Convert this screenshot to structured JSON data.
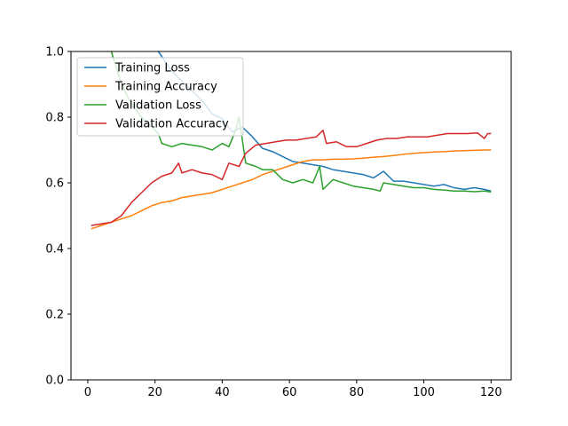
{
  "chart_data": {
    "type": "line",
    "title": "",
    "xlabel": "",
    "ylabel": "",
    "xlim": [
      -5,
      126
    ],
    "ylim": [
      0.0,
      1.0
    ],
    "x_ticks": [
      0,
      20,
      40,
      60,
      80,
      100,
      120
    ],
    "y_ticks": [
      0.0,
      0.2,
      0.4,
      0.6,
      0.8,
      1.0
    ],
    "x_tick_labels": [
      "0",
      "20",
      "40",
      "60",
      "80",
      "100",
      "120"
    ],
    "y_tick_labels": [
      "0.0",
      "0.2",
      "0.4",
      "0.6",
      "0.8",
      "1.0"
    ],
    "grid": false,
    "legend_position": "upper-left",
    "series": [
      {
        "name": "Training Loss",
        "color": "#1f77b4",
        "x": [
          21,
          22,
          25,
          28,
          31,
          34,
          37,
          40,
          43,
          46,
          49,
          52,
          55,
          58,
          61,
          64,
          67,
          70,
          73,
          76,
          79,
          82,
          85,
          88,
          91,
          94,
          97,
          100,
          103,
          106,
          109,
          112,
          115,
          118,
          120
        ],
        "y": [
          1.0,
          0.985,
          0.94,
          0.91,
          0.88,
          0.85,
          0.81,
          0.795,
          0.755,
          0.77,
          0.74,
          0.705,
          0.695,
          0.68,
          0.665,
          0.66,
          0.655,
          0.65,
          0.64,
          0.635,
          0.63,
          0.625,
          0.615,
          0.635,
          0.605,
          0.605,
          0.6,
          0.595,
          0.59,
          0.595,
          0.585,
          0.58,
          0.585,
          0.58,
          0.575
        ]
      },
      {
        "name": "Training Accuracy",
        "color": "#ff7f0e",
        "x": [
          1,
          4,
          7,
          10,
          13,
          16,
          19,
          22,
          25,
          28,
          31,
          34,
          37,
          40,
          43,
          46,
          49,
          52,
          55,
          58,
          61,
          64,
          67,
          70,
          73,
          76,
          79,
          82,
          85,
          88,
          91,
          94,
          97,
          100,
          103,
          106,
          109,
          112,
          115,
          118,
          120
        ],
        "y": [
          0.46,
          0.47,
          0.48,
          0.49,
          0.5,
          0.515,
          0.53,
          0.54,
          0.545,
          0.555,
          0.56,
          0.565,
          0.57,
          0.58,
          0.59,
          0.6,
          0.61,
          0.625,
          0.635,
          0.645,
          0.655,
          0.665,
          0.67,
          0.67,
          0.672,
          0.672,
          0.673,
          0.675,
          0.678,
          0.68,
          0.683,
          0.687,
          0.69,
          0.692,
          0.694,
          0.695,
          0.697,
          0.698,
          0.699,
          0.7,
          0.7
        ]
      },
      {
        "name": "Validation Loss",
        "color": "#2ca02c",
        "x": [
          7,
          10,
          13,
          16,
          19,
          21,
          22,
          25,
          28,
          31,
          34,
          37,
          40,
          42,
          44,
          45,
          47,
          50,
          52,
          55,
          58,
          61,
          64,
          67,
          69,
          70,
          73,
          76,
          79,
          82,
          85,
          87,
          88,
          91,
          94,
          97,
          100,
          103,
          106,
          109,
          112,
          115,
          118,
          120
        ],
        "y": [
          1.0,
          0.9,
          0.84,
          0.8,
          0.77,
          0.75,
          0.72,
          0.71,
          0.72,
          0.715,
          0.71,
          0.7,
          0.72,
          0.71,
          0.76,
          0.8,
          0.66,
          0.65,
          0.64,
          0.64,
          0.61,
          0.6,
          0.61,
          0.6,
          0.65,
          0.58,
          0.61,
          0.6,
          0.59,
          0.585,
          0.58,
          0.575,
          0.6,
          0.595,
          0.59,
          0.585,
          0.585,
          0.58,
          0.578,
          0.575,
          0.575,
          0.573,
          0.575,
          0.572
        ]
      },
      {
        "name": "Validation Accuracy",
        "color": "#d62728",
        "x": [
          1,
          4,
          7,
          10,
          13,
          16,
          19,
          22,
          25,
          27,
          28,
          31,
          34,
          37,
          40,
          42,
          45,
          47,
          50,
          53,
          56,
          59,
          62,
          65,
          68,
          70,
          71,
          74,
          77,
          80,
          83,
          86,
          89,
          92,
          95,
          98,
          101,
          104,
          107,
          110,
          113,
          116,
          118,
          119,
          120
        ],
        "y": [
          0.47,
          0.475,
          0.48,
          0.5,
          0.54,
          0.57,
          0.6,
          0.62,
          0.63,
          0.66,
          0.63,
          0.64,
          0.63,
          0.625,
          0.61,
          0.66,
          0.65,
          0.69,
          0.715,
          0.72,
          0.725,
          0.73,
          0.73,
          0.735,
          0.74,
          0.76,
          0.72,
          0.725,
          0.71,
          0.71,
          0.72,
          0.73,
          0.735,
          0.735,
          0.74,
          0.74,
          0.74,
          0.745,
          0.75,
          0.75,
          0.75,
          0.752,
          0.735,
          0.75,
          0.75
        ]
      }
    ]
  }
}
